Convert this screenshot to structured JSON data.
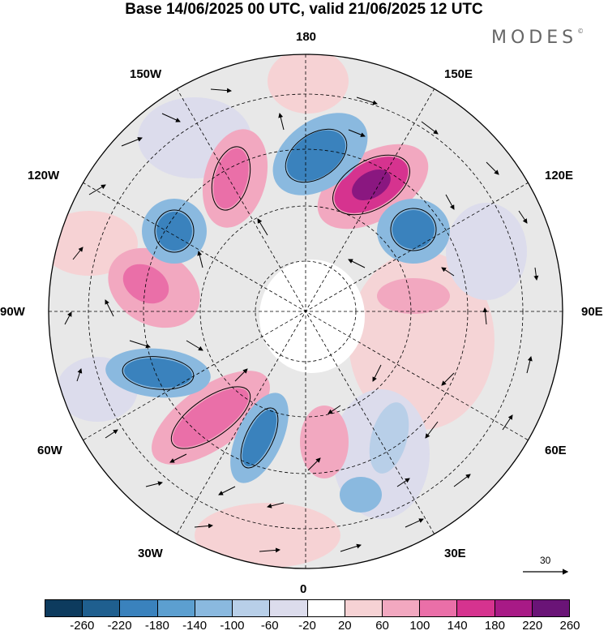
{
  "title": "Base 14/06/2025 00 UTC, valid 21/06/2025 12 UTC",
  "brand": "MODES",
  "brand_mark": "©",
  "longitude_labels": {
    "top": "180",
    "bottom": "0",
    "left": "90W",
    "right": "90E",
    "upper_left": "150W",
    "upper_right": "150E",
    "mid_upper_left": "120W",
    "mid_upper_right": "120E",
    "mid_lower_left": "60W",
    "mid_lower_right": "60E",
    "lower_left": "30W",
    "lower_right": "30E"
  },
  "reference_vector": {
    "label": "30"
  },
  "colorbar": {
    "colors": [
      "#0d3b5e",
      "#1f5f8f",
      "#3a82bd",
      "#5c9fd0",
      "#8ab9df",
      "#b8cfe8",
      "#dcdcec",
      "#ffffff",
      "#f6d2d4",
      "#f2a8c0",
      "#ea6fa8",
      "#d6338f",
      "#a81a86",
      "#6a1477"
    ],
    "ticks": [
      "-260",
      "-220",
      "-180",
      "-140",
      "-100",
      "-60",
      "-20",
      "20",
      "60",
      "100",
      "140",
      "180",
      "220",
      "260"
    ]
  },
  "anomalies": [
    {
      "value": -180,
      "color": "#3a82bd"
    },
    {
      "value": 260,
      "color": "#8a1780"
    },
    {
      "value": 140,
      "color": "#ea6fa8"
    },
    {
      "value": 100,
      "color": "#f2a8c0"
    },
    {
      "value": 60,
      "color": "#f6d2d4"
    }
  ]
}
